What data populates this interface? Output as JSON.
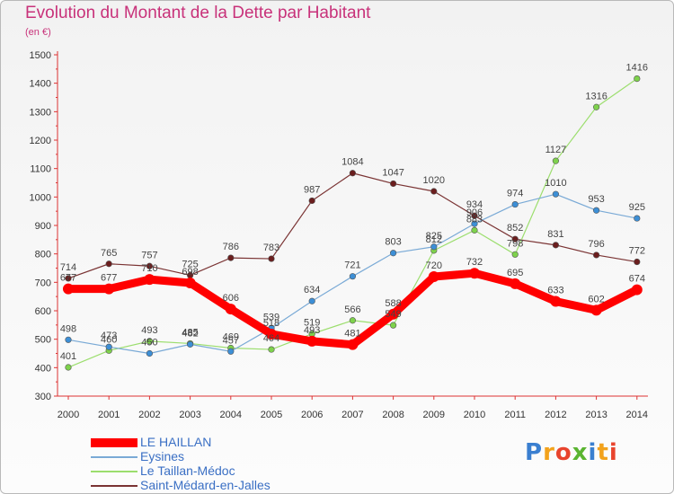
{
  "title": "Evolution du Montant de la Dette par Habitant",
  "subtitle": "(en €)",
  "logo": {
    "text": "Proxiti",
    "letter_colors": [
      "#3a7fd0",
      "#f2a21c",
      "#e8442d",
      "#5ab431",
      "#3a7fd0",
      "#f2a21c",
      "#e8442d"
    ]
  },
  "chart_data": {
    "type": "line",
    "title": "Evolution du Montant de la Dette par Habitant",
    "subtitle": "(en €)",
    "xlabel": "",
    "ylabel": "",
    "ylim": [
      300,
      1500
    ],
    "yticks": [
      300,
      400,
      500,
      600,
      700,
      800,
      900,
      1000,
      1100,
      1200,
      1300,
      1400,
      1500
    ],
    "grid": false,
    "legend_position": "bottom-left",
    "x": [
      "2000",
      "2001",
      "2002",
      "2003",
      "2004",
      "2005",
      "2006",
      "2007",
      "2008",
      "2009",
      "2010",
      "2011",
      "2012",
      "2013",
      "2014"
    ],
    "series": [
      {
        "name": "LE HAILLAN",
        "color": "#ff0000",
        "marker_color": "#ff0000",
        "values": [
          677,
          677,
          710,
          698,
          606,
          518,
          493,
          481,
          588,
          720,
          732,
          695,
          633,
          602,
          674
        ]
      },
      {
        "name": "Eysines",
        "color": "#7aaad6",
        "marker_color": "#3d8fd6",
        "values": [
          498,
          473,
          450,
          482,
          457,
          539,
          634,
          721,
          803,
          825,
          906,
          974,
          1010,
          953,
          925
        ]
      },
      {
        "name": "Le Taillan-Médoc",
        "color": "#9cde6e",
        "marker_color": "#7ed24c",
        "values": [
          401,
          460,
          493,
          485,
          469,
          464,
          519,
          566,
          549,
          812,
          883,
          798,
          1127,
          1316,
          1416
        ]
      },
      {
        "name": "Saint-Médard-en-Jalles",
        "color": "#7a3333",
        "marker_color": "#6b1e1e",
        "values": [
          714,
          765,
          757,
          725,
          786,
          783,
          987,
          1084,
          1047,
          1020,
          934,
          852,
          831,
          796,
          772
        ]
      }
    ]
  }
}
